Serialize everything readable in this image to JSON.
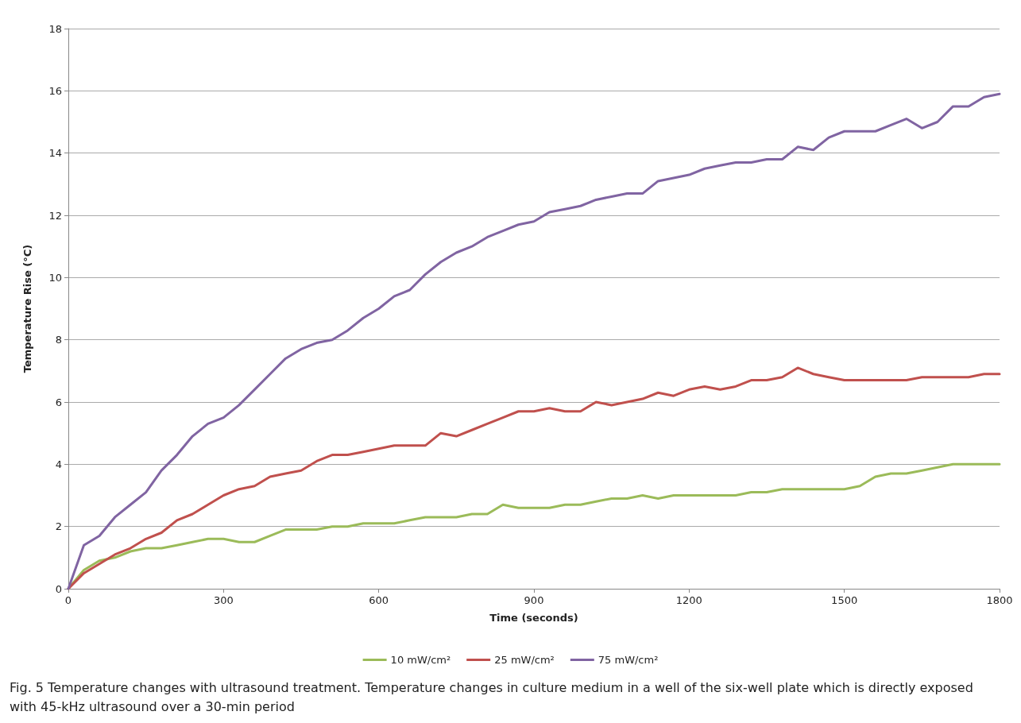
{
  "chart_data": {
    "type": "line",
    "xlabel": "Time (seconds)",
    "ylabel": "Temperature Rise (°C)",
    "x": [
      0,
      30,
      60,
      90,
      120,
      150,
      180,
      210,
      240,
      270,
      300,
      330,
      360,
      390,
      420,
      450,
      480,
      510,
      540,
      570,
      600,
      630,
      660,
      690,
      720,
      750,
      780,
      810,
      840,
      870,
      900,
      930,
      960,
      990,
      1020,
      1050,
      1080,
      1110,
      1140,
      1170,
      1200,
      1230,
      1260,
      1290,
      1320,
      1350,
      1380,
      1410,
      1440,
      1470,
      1500,
      1530,
      1560,
      1590,
      1620,
      1650,
      1680,
      1710,
      1740,
      1770,
      1800
    ],
    "series": [
      {
        "name": "10 mW/cm²",
        "color": "#9bbb59",
        "values": [
          0,
          0.6,
          0.9,
          1.0,
          1.2,
          1.3,
          1.3,
          1.4,
          1.5,
          1.6,
          1.6,
          1.5,
          1.5,
          1.7,
          1.9,
          1.9,
          1.9,
          2.0,
          2.0,
          2.1,
          2.1,
          2.1,
          2.2,
          2.3,
          2.3,
          2.3,
          2.4,
          2.4,
          2.7,
          2.6,
          2.6,
          2.6,
          2.7,
          2.7,
          2.8,
          2.9,
          2.9,
          3.0,
          2.9,
          3.0,
          3.0,
          3.0,
          3.0,
          3.0,
          3.1,
          3.1,
          3.2,
          3.2,
          3.2,
          3.2,
          3.2,
          3.3,
          3.6,
          3.7,
          3.7,
          3.8,
          3.9,
          4.0,
          4.0,
          4.0,
          4.0
        ]
      },
      {
        "name": "25 mW/cm²",
        "color": "#c0504d",
        "values": [
          0,
          0.5,
          0.8,
          1.1,
          1.3,
          1.6,
          1.8,
          2.2,
          2.4,
          2.7,
          3.0,
          3.2,
          3.3,
          3.6,
          3.7,
          3.8,
          4.1,
          4.3,
          4.3,
          4.4,
          4.5,
          4.6,
          4.6,
          4.6,
          5.0,
          4.9,
          5.1,
          5.3,
          5.5,
          5.7,
          5.7,
          5.8,
          5.7,
          5.7,
          6.0,
          5.9,
          6.0,
          6.1,
          6.3,
          6.2,
          6.4,
          6.5,
          6.4,
          6.5,
          6.7,
          6.7,
          6.8,
          7.1,
          6.9,
          6.8,
          6.7,
          6.7,
          6.7,
          6.7,
          6.7,
          6.8,
          6.8,
          6.8,
          6.8,
          6.9,
          6.9
        ]
      },
      {
        "name": "75 mW/cm²",
        "color": "#8064a2",
        "values": [
          0,
          1.4,
          1.7,
          2.3,
          2.7,
          3.1,
          3.8,
          4.3,
          4.9,
          5.3,
          5.5,
          5.9,
          6.4,
          6.9,
          7.4,
          7.7,
          7.9,
          8.0,
          8.3,
          8.7,
          9.0,
          9.4,
          9.6,
          10.1,
          10.5,
          10.8,
          11.0,
          11.3,
          11.5,
          11.7,
          11.8,
          12.1,
          12.2,
          12.3,
          12.5,
          12.6,
          12.7,
          12.7,
          13.1,
          13.2,
          13.3,
          13.5,
          13.6,
          13.7,
          13.7,
          13.8,
          13.8,
          14.2,
          14.1,
          14.5,
          14.7,
          14.7,
          14.7,
          14.9,
          15.1,
          14.8,
          15.0,
          15.5,
          15.5,
          15.8,
          15.9
        ]
      }
    ],
    "xlim": [
      0,
      1800
    ],
    "xticks": [
      0,
      300,
      600,
      900,
      1200,
      1500,
      1800
    ],
    "ylim": [
      0,
      18
    ],
    "yticks": [
      0,
      2,
      4,
      6,
      8,
      10,
      12,
      14,
      16,
      18
    ],
    "grid": "y",
    "legend": "bottom",
    "marker": "none",
    "line_style": "solid",
    "annotations": [
      "Fig. 5 Temperature changes with ultrasound treatment. Temperature changes in culture medium in a well of the six-well plate which is directly exposed with 45-kHz ultrasound over a 30-min period"
    ]
  }
}
